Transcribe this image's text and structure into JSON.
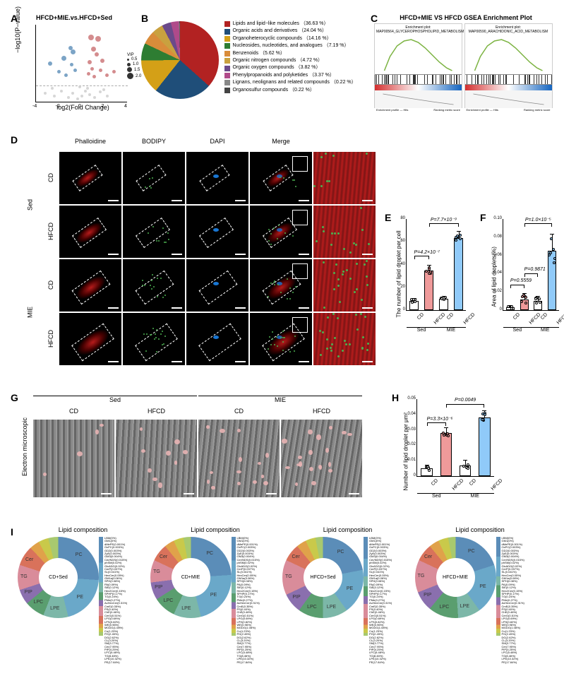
{
  "panelA": {
    "label": "A",
    "title": "HFCD+MIE.vs.HFCD+Sed",
    "ylabel": "−log10(P−value)",
    "xlabel": "log2(Fold Change)",
    "xlim": [
      -4,
      4
    ],
    "ylim": [
      0,
      6
    ],
    "xticks": [
      -4,
      -2,
      0,
      2,
      4
    ],
    "vip_title": "VIP",
    "vip_levels": [
      0.5,
      1.0,
      1.5,
      2.0
    ],
    "colors": {
      "ns": "#cccccc",
      "down": "#5b8db8",
      "up": "#c96f72"
    },
    "threshold_line_y": 1.3,
    "points": [
      {
        "x": -2.8,
        "y": 3.0,
        "c": "down",
        "s": 6
      },
      {
        "x": -2.0,
        "y": 2.4,
        "c": "down",
        "s": 5
      },
      {
        "x": -1.6,
        "y": 3.4,
        "c": "down",
        "s": 7
      },
      {
        "x": -1.4,
        "y": 2.1,
        "c": "down",
        "s": 5
      },
      {
        "x": -1.0,
        "y": 4.2,
        "c": "down",
        "s": 6
      },
      {
        "x": -0.9,
        "y": 2.9,
        "c": "down",
        "s": 5
      },
      {
        "x": -0.8,
        "y": 3.9,
        "c": "down",
        "s": 7
      },
      {
        "x": -0.6,
        "y": 2.5,
        "c": "down",
        "s": 5
      },
      {
        "x": 0.6,
        "y": 2.2,
        "c": "up",
        "s": 5
      },
      {
        "x": 0.7,
        "y": 3.1,
        "c": "up",
        "s": 6
      },
      {
        "x": 0.8,
        "y": 5.0,
        "c": "up",
        "s": 8
      },
      {
        "x": 0.9,
        "y": 2.6,
        "c": "up",
        "s": 5
      },
      {
        "x": 1.0,
        "y": 4.1,
        "c": "up",
        "s": 7
      },
      {
        "x": 1.1,
        "y": 2.0,
        "c": "up",
        "s": 5
      },
      {
        "x": 1.3,
        "y": 3.7,
        "c": "up",
        "s": 6
      },
      {
        "x": 1.4,
        "y": 4.9,
        "c": "up",
        "s": 8
      },
      {
        "x": 1.6,
        "y": 2.5,
        "c": "up",
        "s": 5
      },
      {
        "x": 1.8,
        "y": 3.2,
        "c": "up",
        "s": 6
      },
      {
        "x": 2.2,
        "y": 2.1,
        "c": "up",
        "s": 5
      },
      {
        "x": 2.8,
        "y": 2.4,
        "c": "up",
        "s": 5
      },
      {
        "x": -3.2,
        "y": 0.7,
        "c": "ns",
        "s": 4
      },
      {
        "x": -2.4,
        "y": 0.5,
        "c": "ns",
        "s": 4
      },
      {
        "x": -1.8,
        "y": 0.9,
        "c": "ns",
        "s": 4
      },
      {
        "x": -1.2,
        "y": 0.4,
        "c": "ns",
        "s": 4
      },
      {
        "x": -0.8,
        "y": 0.7,
        "c": "ns",
        "s": 4
      },
      {
        "x": -0.4,
        "y": 0.3,
        "c": "ns",
        "s": 4
      },
      {
        "x": 0.0,
        "y": 0.5,
        "c": "ns",
        "s": 4
      },
      {
        "x": 0.3,
        "y": 0.9,
        "c": "ns",
        "s": 4
      },
      {
        "x": 0.7,
        "y": 0.6,
        "c": "ns",
        "s": 4
      },
      {
        "x": 1.1,
        "y": 0.4,
        "c": "ns",
        "s": 4
      },
      {
        "x": 1.6,
        "y": 0.8,
        "c": "ns",
        "s": 4
      },
      {
        "x": 2.2,
        "y": 0.5,
        "c": "ns",
        "s": 4
      },
      {
        "x": -2.6,
        "y": 1.1,
        "c": "ns",
        "s": 4
      },
      {
        "x": -0.2,
        "y": 1.2,
        "c": "ns",
        "s": 4
      },
      {
        "x": 0.5,
        "y": 1.1,
        "c": "ns",
        "s": 4
      },
      {
        "x": 1.9,
        "y": 1.0,
        "c": "ns",
        "s": 4
      }
    ]
  },
  "panelB": {
    "label": "B",
    "slices": [
      {
        "name": "Lipids and lipid−like molecules",
        "pct": 36.63,
        "color": "#b22222"
      },
      {
        "name": "Organic acids and derivatives",
        "pct": 24.04,
        "color": "#1f4e79"
      },
      {
        "name": "Organoheterocyclic compounds",
        "pct": 14.16,
        "color": "#d4a017"
      },
      {
        "name": "Nucleosides, nucleotides, and analogues",
        "pct": 7.19,
        "color": "#2e7d32"
      },
      {
        "name": "Benzenoids",
        "pct": 5.62,
        "color": "#d98c3a"
      },
      {
        "name": "Organic nitrogen compounds",
        "pct": 4.72,
        "color": "#c9a13f"
      },
      {
        "name": "Organic oxygen compounds",
        "pct": 3.82,
        "color": "#6b4a8a"
      },
      {
        "name": "Phenylpropanoids and polyketides",
        "pct": 3.37,
        "color": "#b04a8a"
      },
      {
        "name": "Lignans, neolignans and related compounds",
        "pct": 0.22,
        "color": "#888"
      },
      {
        "name": "Organosulfur compounds",
        "pct": 0.22,
        "color": "#444"
      }
    ]
  },
  "panelC": {
    "label": "C",
    "title": "HFCD+MIE VS HFCD GSEA Enrichment Plot",
    "plots": [
      {
        "subtitle": "MAP00564_GLYCEROPHOSPHOLIPID_METABOLISM",
        "curve_color": "#7cb342"
      },
      {
        "subtitle": "MAP00590_ARACHIDONIC_ACID_METABOLISM",
        "curve_color": "#7cb342"
      }
    ],
    "footer_left": "Enrichment profile — Hits",
    "footer_right": "Ranking metric score"
  },
  "panelD": {
    "label": "D",
    "col_headers": [
      "Phalloidine",
      "BODIPY",
      "DAPI",
      "Merge",
      ""
    ],
    "row_groups": [
      {
        "group": "Sed",
        "rows": [
          "CD",
          "HFCD"
        ]
      },
      {
        "group": "MIE",
        "rows": [
          "CD",
          "HFCD"
        ]
      }
    ],
    "stain_colors": {
      "phalloidin": "#b71c1c",
      "bodipy": "#4caf50",
      "dapi": "#1976d2"
    }
  },
  "panelE": {
    "label": "E",
    "ylabel": "The number of lipid droplet per cell",
    "ylim": [
      0,
      80
    ],
    "ytick_step": 20,
    "groups": [
      "CD",
      "HFCD",
      "CD",
      "HFCD"
    ],
    "subgroups": [
      "Sed",
      "MIE"
    ],
    "values": [
      8,
      35,
      10,
      63
    ],
    "errors": [
      2,
      4,
      2,
      6
    ],
    "colors": [
      "#ffffff",
      "#ef9a9a",
      "#ffffff",
      "#90caf9"
    ],
    "pvals": [
      {
        "label": "P=4.2×10⁻⁷",
        "i1": 0,
        "i2": 1,
        "h": 48
      },
      {
        "label": "P=7.7×10⁻⁹",
        "i1": 1,
        "i2": 3,
        "h": 76
      }
    ]
  },
  "panelF": {
    "label": "F",
    "ylabel": "Area of lipid droplets(%)",
    "ylim": [
      0,
      0.1
    ],
    "ytick_step": 0.02,
    "groups": [
      "CD",
      "HFCD",
      "CD",
      "HFCD"
    ],
    "subgroups": [
      "Sed",
      "MIE"
    ],
    "values": [
      0.003,
      0.012,
      0.01,
      0.065
    ],
    "errors": [
      0.002,
      0.006,
      0.005,
      0.018
    ],
    "colors": [
      "#ffffff",
      "#ef9a9a",
      "#ffffff",
      "#90caf9"
    ],
    "pvals": [
      {
        "label": "P=0.5559",
        "i1": 0,
        "i2": 1,
        "h": 0.028
      },
      {
        "label": "P=0.9871",
        "i1": 1,
        "i2": 2,
        "h": 0.04
      },
      {
        "label": "P=1.0×10⁻⁵",
        "i1": 1,
        "i2": 3,
        "h": 0.095
      }
    ]
  },
  "panelG": {
    "label": "G",
    "row_label": "Electron microscopic",
    "top_groups": [
      "Sed",
      "MIE"
    ],
    "cols": [
      "CD",
      "HFCD",
      "CD",
      "HFCD"
    ]
  },
  "panelH": {
    "label": "H",
    "ylabel": "Number of lipid droplet per μm²",
    "ylim": [
      0,
      0.05
    ],
    "ytick_step": 0.01,
    "groups": [
      "CD",
      "HFCD",
      "CD",
      "HFCD"
    ],
    "subgroups": [
      "Sed",
      "MIE"
    ],
    "values": [
      0.005,
      0.028,
      0.007,
      0.038
    ],
    "errors": [
      0.002,
      0.003,
      0.003,
      0.004
    ],
    "colors": [
      "#ffffff",
      "#ef9a9a",
      "#ffffff",
      "#90caf9"
    ],
    "pvals": [
      {
        "label": "P=3.3×10⁻⁶",
        "i1": 0,
        "i2": 1,
        "h": 0.035
      },
      {
        "label": "P=0.0049",
        "i1": 1,
        "i2": 3,
        "h": 0.047
      }
    ]
  },
  "panelI": {
    "label": "I",
    "title": "Lipid composition",
    "donuts": [
      {
        "center": "CD+Sed"
      },
      {
        "center": "CD+MIE"
      },
      {
        "center": "HFCD+Sed"
      },
      {
        "center": "HFCD+MIE"
      }
    ],
    "segments": [
      {
        "name": "PC",
        "color": "#5b8db8"
      },
      {
        "name": "PE",
        "color": "#6aa8c9"
      },
      {
        "name": "LPE",
        "color": "#7cb7a8"
      },
      {
        "name": "LPC",
        "color": "#5a9e6f"
      },
      {
        "name": "PIP",
        "color": "#8a6fae"
      },
      {
        "name": "TG",
        "color": "#d98c9a"
      },
      {
        "name": "Cer",
        "color": "#d9725b"
      },
      {
        "name": "SM",
        "color": "#e0a24a"
      },
      {
        "name": "CL",
        "color": "#c9c94a"
      },
      {
        "name": "PG",
        "color": "#a8c96f"
      }
    ],
    "donut_pcts": [
      [
        26,
        20,
        10,
        8,
        6,
        10,
        8,
        4,
        4,
        4
      ],
      [
        24,
        22,
        11,
        9,
        7,
        9,
        7,
        4,
        4,
        3
      ],
      [
        22,
        18,
        10,
        10,
        8,
        14,
        7,
        4,
        4,
        3
      ],
      [
        20,
        20,
        9,
        12,
        8,
        13,
        7,
        4,
        4,
        3
      ]
    ],
    "legend_sample": [
      "LBM(0%)",
      "GM1(0%)",
      "dMePE(0.001%)",
      "OxPC(0.003%)",
      "GD2(0.003%)",
      "ZyE(0.003%)",
      "GM3(0.004%)",
      "Cer/NDS(0.015%)",
      "phSM(0.02%)",
      "GlcADG(0.02%)",
      "CerP(0.037%)",
      "SL(0.041%)",
      "HexCer(0.05%)",
      "GM1a(0.06%)",
      "SPH(0.08%)",
      "PA(0.09%)",
      "SiE(0.12%)",
      "Hex2Cer(0.15%)",
      "SPHP(0.17%)",
      "TG(0.24%)",
      "PMe(0.27%)",
      "AcHexCer(0.31%)",
      "CmE(0.35%)",
      "PS(0.40%)",
      "ChE(0.46%)",
      "CerG(0.51%)",
      "LPG(0.69%)",
      "LPS(0.82%)",
      "WE(0.96%)",
      "MGDG(1.08%)",
      "Co(1.23%)",
      "PG(2.45%)",
      "DG(2.62%)",
      "CL(3.20%)",
      "SM(3.77%)",
      "Cer(7.95%)",
      "PIP(4.25%)",
      "LPC(5.48%)",
      "TG(8.46%)",
      "LPE(10.32%)",
      "PE(17.84%)"
    ]
  }
}
